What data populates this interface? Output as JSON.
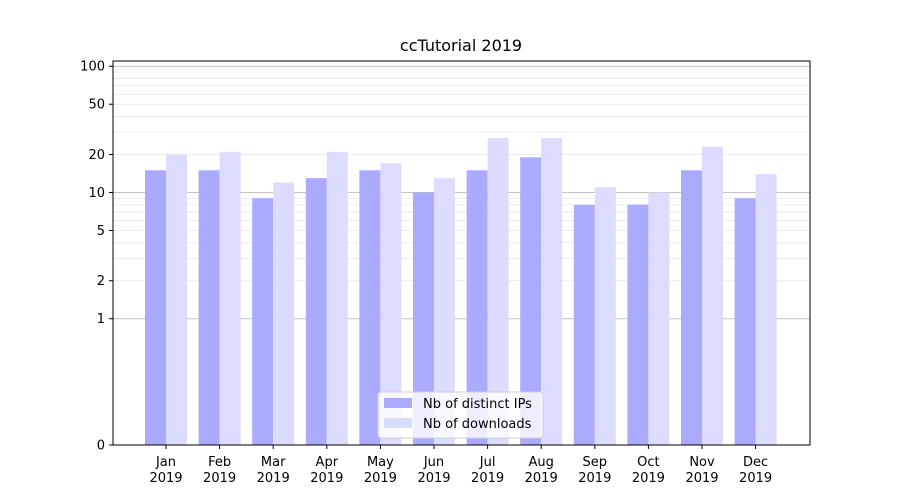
{
  "chart_data": {
    "type": "bar",
    "title": "ccTutorial 2019",
    "xlabel": "",
    "ylabel": "",
    "y_scale": "symlog",
    "ylim": [
      0,
      110
    ],
    "y_ticks": [
      {
        "value": 0,
        "label": "0"
      },
      {
        "value": 1,
        "label": "1"
      },
      {
        "value": 2,
        "label": "2"
      },
      {
        "value": 5,
        "label": "5"
      },
      {
        "value": 10,
        "label": "10"
      },
      {
        "value": 20,
        "label": "20"
      },
      {
        "value": 50,
        "label": "50"
      },
      {
        "value": 100,
        "label": "100"
      }
    ],
    "categories": [
      {
        "month": "Jan",
        "year": "2019"
      },
      {
        "month": "Feb",
        "year": "2019"
      },
      {
        "month": "Mar",
        "year": "2019"
      },
      {
        "month": "Apr",
        "year": "2019"
      },
      {
        "month": "May",
        "year": "2019"
      },
      {
        "month": "Jun",
        "year": "2019"
      },
      {
        "month": "Jul",
        "year": "2019"
      },
      {
        "month": "Aug",
        "year": "2019"
      },
      {
        "month": "Sep",
        "year": "2019"
      },
      {
        "month": "Oct",
        "year": "2019"
      },
      {
        "month": "Nov",
        "year": "2019"
      },
      {
        "month": "Dec",
        "year": "2019"
      }
    ],
    "series": [
      {
        "name": "Nb of distinct IPs",
        "color": "#aaaaff",
        "values": [
          15,
          15,
          9,
          13,
          15,
          10,
          15,
          19,
          8,
          8,
          15,
          9
        ]
      },
      {
        "name": "Nb of downloads",
        "color": "#dcdcff",
        "values": [
          20,
          21,
          12,
          21,
          17,
          13,
          27,
          27,
          11,
          10,
          23,
          14
        ]
      }
    ],
    "grid": true,
    "legend_position": "bottom-center"
  }
}
